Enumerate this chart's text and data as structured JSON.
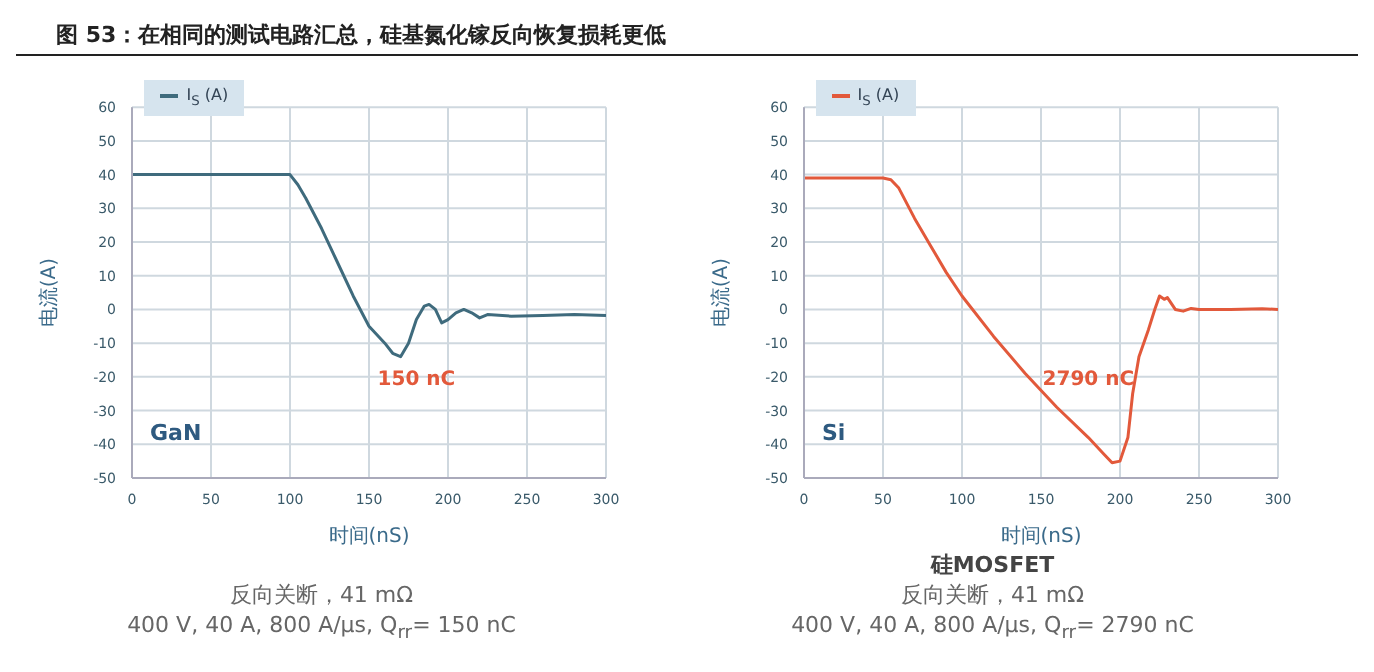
{
  "chart_data": [
    {
      "type": "line",
      "title": "图 53：在相同的测试电路汇总，硅基氮化镓反向恢复损耗更低",
      "xlabel": "时间(nS)",
      "ylabel": "电流(A)",
      "xlim": [
        0,
        300
      ],
      "xticks": [
        0,
        50,
        100,
        150,
        200,
        250,
        300
      ],
      "ylim": [
        -50,
        60
      ],
      "yticks": [
        -50,
        -40,
        -30,
        -20,
        -10,
        0,
        10,
        20,
        30,
        40,
        50,
        60
      ],
      "grid": true,
      "legend": "top left",
      "marker": "none",
      "line_style": "solid",
      "series": [
        {
          "name": "I$_{S}$ (A)",
          "color": "#3f6b7d",
          "x": [
            0,
            50,
            100,
            105,
            110,
            120,
            130,
            140,
            150,
            160,
            165,
            170,
            175,
            180,
            185,
            188,
            192,
            196,
            200,
            205,
            210,
            215,
            220,
            225,
            240,
            260,
            280,
            300
          ],
          "values": [
            40,
            40,
            40,
            37,
            33,
            24,
            14,
            4,
            -5,
            -10,
            -13,
            -14,
            -10,
            -3,
            1,
            1.5,
            0,
            -4,
            -3,
            -1,
            0,
            -1,
            -2.5,
            -1.5,
            -2,
            -1.8,
            -1.5,
            -1.8
          ]
        }
      ],
      "annotations": [
        "GaN",
        "150 nC",
        "反向关断，41 mΩ",
        "400 V, 40 A, 800 A/μs, Q$_{rr}$= 150 nC"
      ]
    },
    {
      "type": "line",
      "subtitle": "硅MOSFET",
      "xlabel": "时间(nS)",
      "ylabel": "电流(A)",
      "xlim": [
        0,
        300
      ],
      "xticks": [
        0,
        50,
        100,
        150,
        200,
        250,
        300
      ],
      "ylim": [
        -50,
        60
      ],
      "yticks": [
        -50,
        -40,
        -30,
        -20,
        -10,
        0,
        10,
        20,
        30,
        40,
        50,
        60
      ],
      "grid": true,
      "legend": "top left",
      "marker": "none",
      "line_style": "solid",
      "series": [
        {
          "name": "I$_{S}$ (A)",
          "color": "#e2593b",
          "x": [
            0,
            50,
            55,
            60,
            70,
            80,
            90,
            100,
            120,
            140,
            160,
            180,
            190,
            195,
            200,
            205,
            208,
            212,
            218,
            222,
            225,
            228,
            230,
            235,
            240,
            245,
            250,
            270,
            290,
            300
          ],
          "values": [
            39,
            39,
            38.5,
            36,
            27,
            19,
            11,
            4,
            -8,
            -19,
            -29,
            -38,
            -43,
            -45.5,
            -45,
            -38,
            -25,
            -14,
            -6,
            0,
            4,
            3,
            3.5,
            0,
            -0.5,
            0.3,
            0,
            0,
            0.2,
            0
          ]
        }
      ],
      "annotations": [
        "Si",
        "2790 nC",
        "反向关断，41 mΩ",
        "400 V, 40 A, 800 A/μs, Q$_{rr}$= 2790 nC"
      ]
    }
  ]
}
